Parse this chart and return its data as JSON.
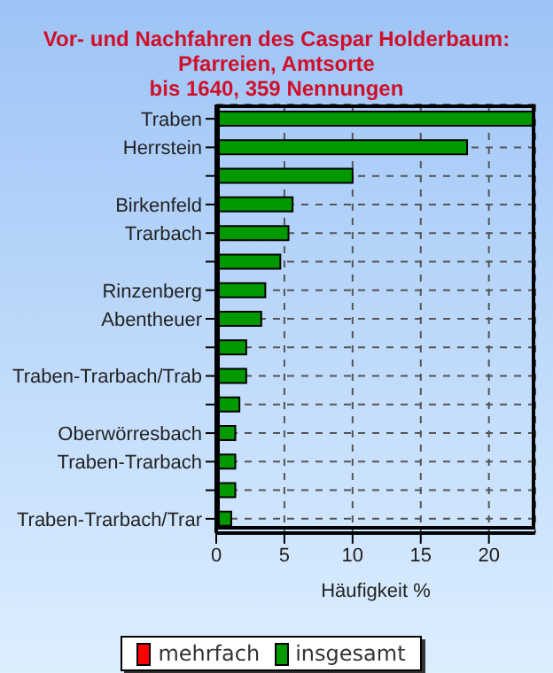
{
  "chart_data": {
    "type": "bar",
    "orientation": "horizontal",
    "stacked": true,
    "title": "Vor- und Nachfahren des Caspar Holderbaum:\nPfarreien, Amtsorte\nbis 1640, 359 Nennungen",
    "xlabel": "Häufigkeit %",
    "categories": [
      "Traben",
      "Herrstein",
      null,
      "Birkenfeld",
      "Trarbach",
      null,
      "Rinzenberg",
      "Abentheuer",
      null,
      "Traben-Trarbach/Trab",
      null,
      "Oberwörresbach",
      "Traben-Trarbach",
      null,
      "Traben-Trarbach/Trar"
    ],
    "series": [
      {
        "name": "mehrfach",
        "color": "#ff0000",
        "values": [
          null,
          null,
          null,
          null,
          null,
          null,
          null,
          null,
          null,
          null,
          null,
          null,
          null,
          null,
          null
        ]
      },
      {
        "name": "insgesamt",
        "color": "#009900",
        "values": [
          23.4,
          18.4,
          10.0,
          5.6,
          5.3,
          4.7,
          3.6,
          3.3,
          2.2,
          2.2,
          1.7,
          1.4,
          1.4,
          1.4,
          1.1
        ]
      }
    ],
    "xlim": [
      0,
      23.4
    ],
    "xticks": [
      0,
      5,
      10,
      15,
      20
    ],
    "grid": true,
    "legend": "bottom"
  }
}
